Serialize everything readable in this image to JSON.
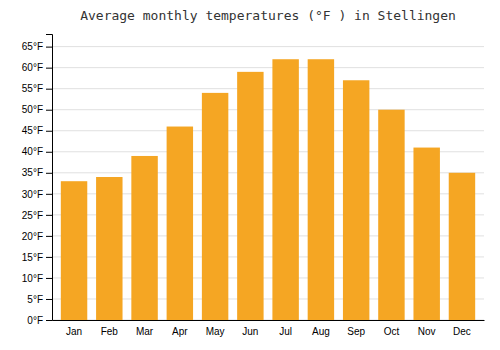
{
  "chart_data": {
    "type": "bar",
    "title": "Average monthly temperatures (°F ) in Stellingen",
    "categories": [
      "Jan",
      "Feb",
      "Mar",
      "Apr",
      "May",
      "Jun",
      "Jul",
      "Aug",
      "Sep",
      "Oct",
      "Nov",
      "Dec"
    ],
    "values": [
      33,
      34,
      39,
      46,
      54,
      59,
      62,
      62,
      57,
      50,
      41,
      35
    ],
    "color": "#F5A623",
    "ylim": [
      0,
      68
    ],
    "yticks": [
      {
        "value": 0,
        "label": "0°F"
      },
      {
        "value": 5,
        "label": "5°F"
      },
      {
        "value": 10,
        "label": "10°F"
      },
      {
        "value": 15,
        "label": "15°F"
      },
      {
        "value": 20,
        "label": "20°F"
      },
      {
        "value": 25,
        "label": "25°F"
      },
      {
        "value": 30,
        "label": "30°F"
      },
      {
        "value": 35,
        "label": "35°F"
      },
      {
        "value": 40,
        "label": "40°F"
      },
      {
        "value": 45,
        "label": "45°F"
      },
      {
        "value": 50,
        "label": "50°F"
      },
      {
        "value": 55,
        "label": "55°F"
      },
      {
        "value": 60,
        "label": "60°F"
      },
      {
        "value": 65,
        "label": "65°F"
      }
    ],
    "grid": true
  }
}
